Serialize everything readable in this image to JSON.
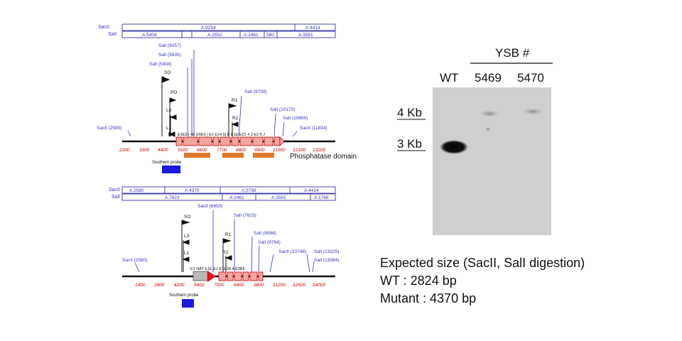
{
  "maps": [
    {
      "id": "wt",
      "saci_label": "SacII",
      "sali_label": "SalI",
      "saci_fragments": [
        "A:9254",
        "A:4414"
      ],
      "sali_fragments": [
        "A:5404",
        "A:2552",
        "A:1461",
        "580",
        "A:3561"
      ],
      "sites": [
        {
          "label": "SalI (6057)",
          "color": "#3333cc"
        },
        {
          "label": "SalI (5935)",
          "color": "#3333cc"
        },
        {
          "label": "SalI (5404)",
          "color": "#3333cc"
        },
        {
          "label": "SO",
          "color": "#111111"
        },
        {
          "label": "PO",
          "color": "#111111"
        },
        {
          "label": "L3",
          "color": "#111111"
        },
        {
          "label": "L1",
          "color": "#111111"
        },
        {
          "label": "SacII (2580)",
          "color": "#3333cc"
        },
        {
          "label": "R1",
          "color": "#111111"
        },
        {
          "label": "R2",
          "color": "#111111"
        },
        {
          "label": "SalI (8709)",
          "color": "#3333cc"
        },
        {
          "label": "SalI (10170)",
          "color": "#3333cc"
        },
        {
          "label": "SalI (10850)",
          "color": "#3333cc"
        },
        {
          "label": "SacII (11834)",
          "color": "#3333cc"
        }
      ],
      "exon_label": "E1E2 | 4E  E5E6  | E1  E14 5| E  E1E  E22 4 3  E2 8 J",
      "ticks": [
        "2200",
        "3300",
        "4400",
        "5500",
        "6600",
        "7700",
        "8800",
        "9900",
        "11000",
        "12100",
        "13200"
      ],
      "domain_label": "Phosphatase domain",
      "probe_label": "Southern probe"
    },
    {
      "id": "mutant",
      "saci_label": "SacII",
      "sali_label": "SalI",
      "saci_fragments": [
        "A:2580",
        "A:4370",
        "A:3798",
        "A:4414"
      ],
      "sali_fragments": [
        "A:7623",
        "A:1461",
        "A:3561",
        "A:1768"
      ],
      "sites": [
        {
          "label": "SacII (6950)",
          "color": "#3333cc"
        },
        {
          "label": "SalI (7623)",
          "color": "#3333cc"
        },
        {
          "label": "SO",
          "color": "#111111"
        },
        {
          "label": "L3",
          "color": "#111111"
        },
        {
          "label": "L1",
          "color": "#111111"
        },
        {
          "label": "R1",
          "color": "#111111"
        },
        {
          "label": "R2",
          "color": "#111111"
        },
        {
          "label": "SalI (9084)",
          "color": "#3333cc"
        },
        {
          "label": "SalI (9764)",
          "color": "#3333cc"
        },
        {
          "label": "SacII (10748)",
          "color": "#3333cc"
        },
        {
          "label": "SalI (13325)",
          "color": "#3333cc"
        },
        {
          "label": "SalI (13394)",
          "color": "#3333cc"
        },
        {
          "label": "SacII (2580)",
          "color": "#3333cc"
        }
      ],
      "exon_label": "E1     NAT   E1E E1 E1E28 4 E3BII",
      "ticks": [
        "1400",
        "2800",
        "4200",
        "5600",
        "7000",
        "8400",
        "9800",
        "11200",
        "12600",
        "14000"
      ],
      "probe_label": "Southern probe"
    }
  ],
  "blot": {
    "group_label": "YSB #",
    "lanes": [
      "WT",
      "5469",
      "5470"
    ],
    "size_markers": [
      "4 Kb",
      "3 Kb"
    ]
  },
  "expected": {
    "title": "Expected size (SacII, SalI digestion)",
    "wt": "WT : 2824 bp",
    "mutant": "Mutant : 4370 bp"
  },
  "colors": {
    "exon_fill": "#f4a6a0",
    "exon_stroke": "#cc0000",
    "domain_bar": "#e07a2a",
    "probe": "#1a1adc",
    "site_label": "#3333cc",
    "tick_label": "#cc0000",
    "nat_marker": "#ee1111"
  }
}
